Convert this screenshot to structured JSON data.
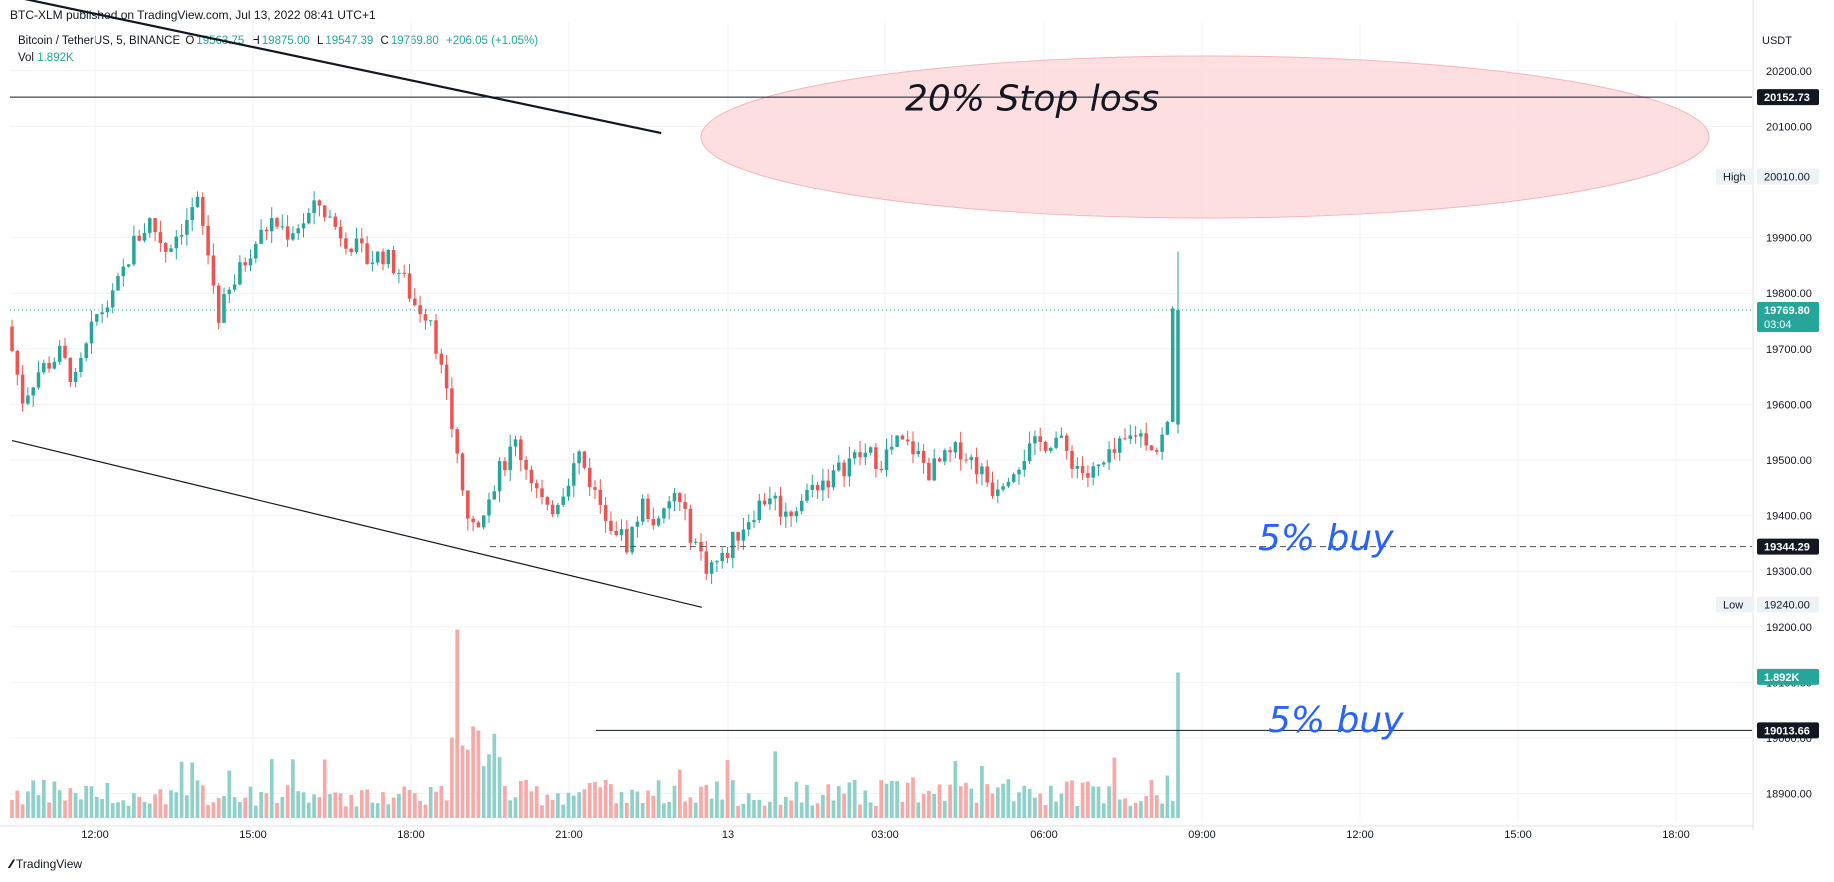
{
  "header": {
    "published": "BTC-XLM published on TradingView.com, Jul 13, 2022 08:41 UTC+1"
  },
  "legend": {
    "symbol": "Bitcoin / TetherUS, 5, BINANCE",
    "open_label": "O",
    "open": "19563.75",
    "high_label": "H",
    "high": "19875.00",
    "low_label": "L",
    "low": "19547.39",
    "close_label": "C",
    "close": "19769.80",
    "change": "+206.05 (+1.05%)",
    "vol_label": "Vol",
    "vol": "1.892K"
  },
  "footer": {
    "brand": "TradingView"
  },
  "colors": {
    "up": "#26a69a",
    "down": "#ef5350",
    "up_vol": "#8fd0c9",
    "down_vol": "#f7a9a7",
    "blue_text": "#2962ff",
    "ellipse_fill": "#fdd8da",
    "ellipse_stroke": "#f5a3a8"
  },
  "chart_data": {
    "type": "candlestick",
    "price_axis": {
      "unit": "USDT",
      "ylim": [
        18860,
        20260
      ],
      "ticks": [
        "20200.00",
        "20100.00",
        "19900.00",
        "19800.00",
        "19700.00",
        "19600.00",
        "19500.00",
        "19400.00",
        "19300.00",
        "19200.00",
        "19100.00",
        "19000.00",
        "18900.00"
      ]
    },
    "time_axis": {
      "ticks": [
        "12:00",
        "15:00",
        "18:00",
        "21:00",
        "13",
        "03:00",
        "06:00",
        "09:00",
        "12:00",
        "15:00",
        "18:00"
      ]
    },
    "tags": [
      {
        "text": "20152.73",
        "price": 20152.73,
        "style": "black"
      },
      {
        "text": "20010.00",
        "price": 20010.0,
        "style": "light",
        "label": "High"
      },
      {
        "text": "19769.80",
        "subtext": "03:04",
        "price": 19769.8,
        "style": "green"
      },
      {
        "text": "19344.29",
        "price": 19344.29,
        "style": "black"
      },
      {
        "text": "19240.00",
        "price": 19240.0,
        "style": "light",
        "label": "Low"
      },
      {
        "text": "1.892K",
        "price": 19110.0,
        "style": "green"
      },
      {
        "text": "19013.66",
        "price": 19013.66,
        "style": "black"
      }
    ],
    "annotations": [
      {
        "text": "20% Stop loss",
        "price": 20150
      },
      {
        "text": "5% buy",
        "price": 19360
      },
      {
        "text": "5% buy",
        "price": 19032
      }
    ],
    "horizontal_lines": [
      {
        "price": 20152.73,
        "style": "solid"
      },
      {
        "price": 19769.8,
        "style": "dotted-green"
      },
      {
        "price": 19344.29,
        "style": "dashed"
      },
      {
        "price": 19013.66,
        "style": "solid"
      }
    ],
    "trend_lines": [
      {
        "from": {
          "bar": -2,
          "price": 20338
        },
        "to": {
          "bar": 64,
          "price": 20088
        }
      },
      {
        "from": {
          "bar": 0,
          "price": 19535
        },
        "to": {
          "bar": 66,
          "price": 19235
        }
      }
    ],
    "price_path": [
      [
        0,
        19740
      ],
      [
        3,
        19610
      ],
      [
        6,
        19660
      ],
      [
        10,
        19690
      ],
      [
        13,
        19640
      ],
      [
        17,
        19760
      ],
      [
        20,
        19790
      ],
      [
        24,
        19890
      ],
      [
        27,
        19930
      ],
      [
        30,
        19880
      ],
      [
        33,
        19920
      ],
      [
        36,
        19960
      ],
      [
        38,
        19870
      ],
      [
        40,
        19760
      ],
      [
        43,
        19820
      ],
      [
        46,
        19880
      ],
      [
        50,
        19930
      ],
      [
        53,
        19910
      ],
      [
        56,
        19930
      ],
      [
        59,
        19960
      ],
      [
        62,
        19920
      ],
      [
        65,
        19890
      ],
      [
        68,
        19860
      ],
      [
        71,
        19870
      ],
      [
        74,
        19840
      ],
      [
        77,
        19780
      ],
      [
        80,
        19760
      ],
      [
        82,
        19660
      ],
      [
        84,
        19560
      ],
      [
        86,
        19440
      ],
      [
        88,
        19370
      ],
      [
        90,
        19420
      ],
      [
        93,
        19480
      ],
      [
        96,
        19530
      ],
      [
        99,
        19470
      ],
      [
        102,
        19400
      ],
      [
        105,
        19450
      ],
      [
        108,
        19510
      ],
      [
        111,
        19440
      ],
      [
        114,
        19390
      ],
      [
        117,
        19350
      ],
      [
        120,
        19420
      ],
      [
        123,
        19380
      ],
      [
        126,
        19440
      ],
      [
        129,
        19370
      ],
      [
        132,
        19310
      ],
      [
        135,
        19320
      ],
      [
        138,
        19370
      ],
      [
        141,
        19410
      ],
      [
        144,
        19440
      ],
      [
        147,
        19400
      ],
      [
        150,
        19430
      ],
      [
        153,
        19460
      ],
      [
        156,
        19470
      ],
      [
        159,
        19500
      ],
      [
        162,
        19510
      ],
      [
        165,
        19500
      ],
      [
        168,
        19530
      ],
      [
        171,
        19520
      ],
      [
        174,
        19480
      ],
      [
        177,
        19500
      ],
      [
        180,
        19520
      ],
      [
        183,
        19490
      ],
      [
        186,
        19450
      ],
      [
        189,
        19480
      ],
      [
        192,
        19510
      ],
      [
        195,
        19530
      ],
      [
        198,
        19540
      ],
      [
        201,
        19500
      ],
      [
        204,
        19470
      ],
      [
        207,
        19490
      ],
      [
        210,
        19520
      ],
      [
        213,
        19550
      ],
      [
        215,
        19540
      ],
      [
        217,
        19520
      ],
      [
        219,
        19560
      ],
      [
        220,
        19769.8
      ]
    ],
    "volume_axis": {
      "max": 2.6
    },
    "last_bar": {
      "open": 19563.75,
      "high": 19875.0,
      "low": 19547.39,
      "close": 19769.8,
      "volume": 1.892
    }
  }
}
